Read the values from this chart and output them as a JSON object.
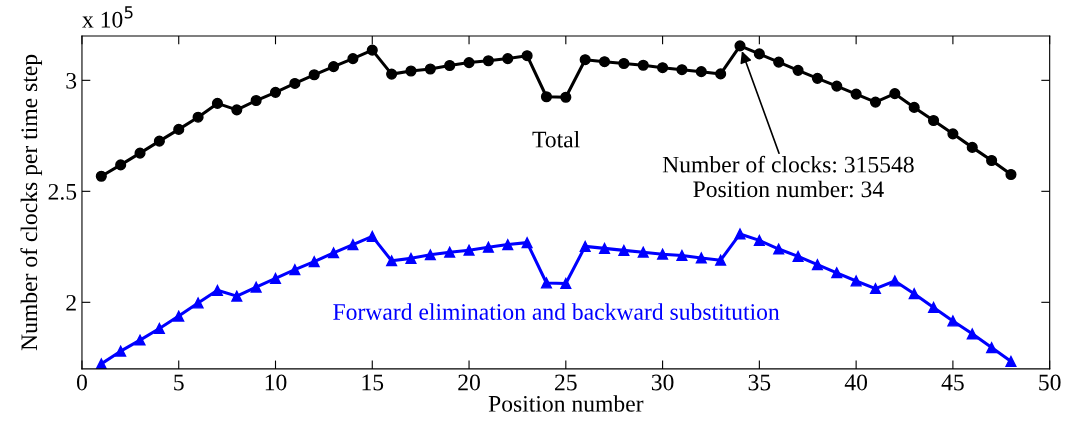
{
  "chart_data": {
    "type": "line",
    "xlabel": "Position number",
    "ylabel": "Number of clocks per time step",
    "x": [
      1,
      2,
      3,
      4,
      5,
      6,
      7,
      8,
      9,
      10,
      11,
      12,
      13,
      14,
      15,
      16,
      17,
      18,
      19,
      20,
      21,
      22,
      23,
      24,
      25,
      26,
      27,
      28,
      29,
      30,
      31,
      32,
      33,
      34,
      35,
      36,
      37,
      38,
      39,
      40,
      41,
      42,
      43,
      44,
      45,
      46,
      47,
      48
    ],
    "series": [
      {
        "name": "Total",
        "color": "#000000",
        "marker": "circle",
        "values": [
          2.568,
          2.619,
          2.672,
          2.726,
          2.779,
          2.834,
          2.896,
          2.867,
          2.909,
          2.946,
          2.986,
          3.025,
          3.062,
          3.098,
          3.136,
          3.028,
          3.042,
          3.051,
          3.067,
          3.08,
          3.088,
          3.098,
          3.111,
          2.926,
          2.924,
          3.093,
          3.084,
          3.076,
          3.068,
          3.057,
          3.048,
          3.039,
          3.029,
          3.15548,
          3.119,
          3.082,
          3.045,
          3.009,
          2.974,
          2.938,
          2.902,
          2.94,
          2.878,
          2.819,
          2.759,
          2.698,
          2.639,
          2.576
        ]
      },
      {
        "name": "Forward elimination and backward substitution",
        "color": "#0000ff",
        "marker": "triangle",
        "values": [
          1.723,
          1.78,
          1.83,
          1.882,
          1.938,
          1.997,
          2.054,
          2.028,
          2.068,
          2.108,
          2.147,
          2.183,
          2.223,
          2.26,
          2.297,
          2.187,
          2.198,
          2.214,
          2.226,
          2.235,
          2.248,
          2.26,
          2.269,
          2.087,
          2.085,
          2.252,
          2.243,
          2.234,
          2.226,
          2.217,
          2.211,
          2.2,
          2.19,
          2.308,
          2.279,
          2.24,
          2.207,
          2.17,
          2.133,
          2.096,
          2.062,
          2.096,
          2.039,
          1.977,
          1.916,
          1.858,
          1.796,
          1.734
        ]
      }
    ],
    "xlim": [
      0,
      50
    ],
    "xticks": [
      0,
      5,
      10,
      15,
      20,
      25,
      30,
      35,
      40,
      45,
      50
    ],
    "ylim": [
      1.7,
      3.2
    ],
    "yticks": [
      2,
      2.5,
      3
    ],
    "annotations": [
      "x 10$^{5}$",
      {
        "text": "Number of clocks: 315548\nPosition number: 34",
        "x": 34,
        "y": 3.15548
      }
    ],
    "grid": false,
    "legend": false,
    "line_style": "solid"
  }
}
